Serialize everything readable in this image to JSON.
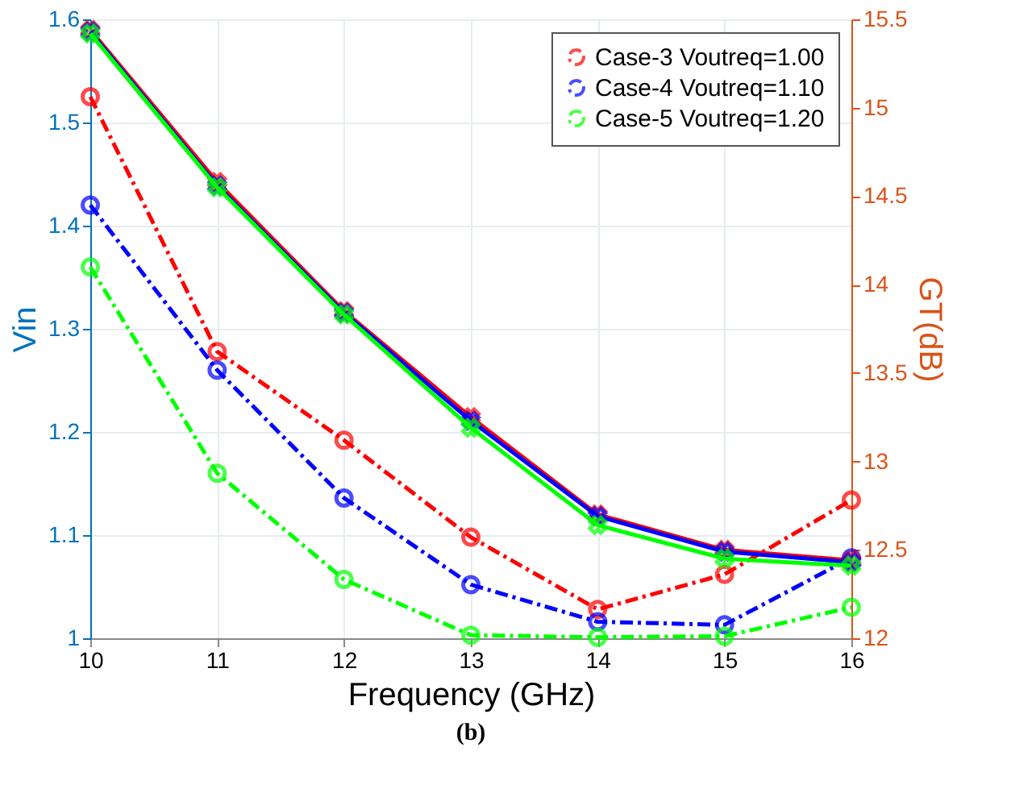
{
  "chart_data": {
    "type": "line",
    "xlabel": "Frequency (GHz)",
    "ylabel": "Vin",
    "y2label": "GT(dB)",
    "x": [
      10,
      11,
      12,
      13,
      14,
      15,
      16
    ],
    "series": [
      {
        "name": "Case-3 Voutreq=1.00",
        "color": "#ff0000",
        "marker": "circle",
        "line_style": "dashed",
        "values": [
          1.525,
          1.278,
          1.192,
          1.098,
          1.028,
          1.062,
          1.134
        ]
      },
      {
        "name": "Case-4 Voutreq=1.10",
        "color": "#0000ff",
        "marker": "circle",
        "line_style": "dashed",
        "values": [
          1.42,
          1.26,
          1.136,
          1.052,
          1.016,
          1.013,
          1.078
        ]
      },
      {
        "name": "Case-5 Voutreq=1.20",
        "color": "#00ff00",
        "marker": "circle",
        "line_style": "dashed",
        "values": [
          1.36,
          1.16,
          1.057,
          1.003,
          1.001,
          1.002,
          1.03
        ]
      },
      {
        "color": "#ff0000",
        "marker": "cross",
        "line_style": "solid",
        "axis": "y2",
        "values": [
          15.44,
          14.58,
          13.85,
          13.25,
          12.7,
          12.5,
          12.44
        ]
      },
      {
        "color": "#0000ff",
        "marker": "cross",
        "line_style": "solid",
        "axis": "y2",
        "values": [
          15.43,
          14.56,
          13.84,
          13.23,
          12.69,
          12.49,
          12.43
        ]
      },
      {
        "color": "#00ff00",
        "marker": "cross",
        "line_style": "solid",
        "axis": "y2",
        "values": [
          15.42,
          14.55,
          13.83,
          13.19,
          12.64,
          12.45,
          12.41
        ]
      }
    ],
    "xlim": [
      10,
      16
    ],
    "xticks": [
      10,
      11,
      12,
      13,
      14,
      15,
      16
    ],
    "ylim": [
      1,
      1.6
    ],
    "yticks": [
      1,
      1.1,
      1.2,
      1.3,
      1.4,
      1.5,
      1.6
    ],
    "y2lim": [
      12,
      15.5
    ],
    "y2ticks": [
      12,
      12.5,
      13,
      13.5,
      14,
      14.5,
      15,
      15.5
    ],
    "grid": true,
    "legend": "top right",
    "annotations": [
      "(b)"
    ]
  }
}
